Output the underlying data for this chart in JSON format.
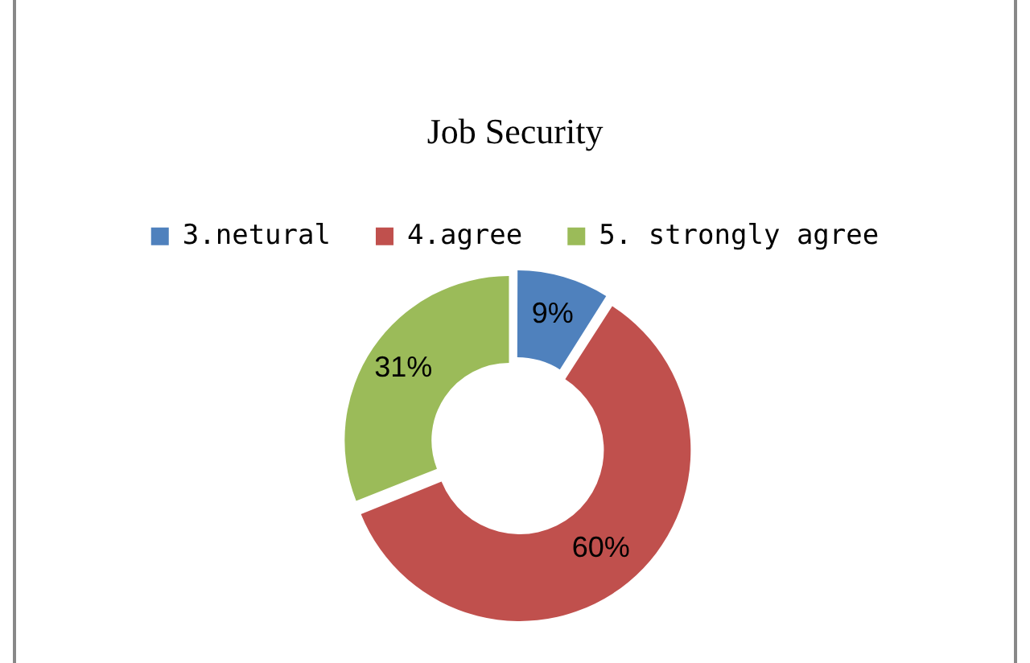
{
  "chart_data": {
    "type": "donut",
    "title": "Job Security",
    "categories": [
      "3.netural",
      "4.agree",
      "5. strongly agree"
    ],
    "values": [
      9,
      60,
      31
    ],
    "colors": [
      "#4f81bd",
      "#c0504d",
      "#9bbb59"
    ],
    "legend": "top",
    "value_labels": [
      "9%",
      "60%",
      "31%"
    ]
  }
}
